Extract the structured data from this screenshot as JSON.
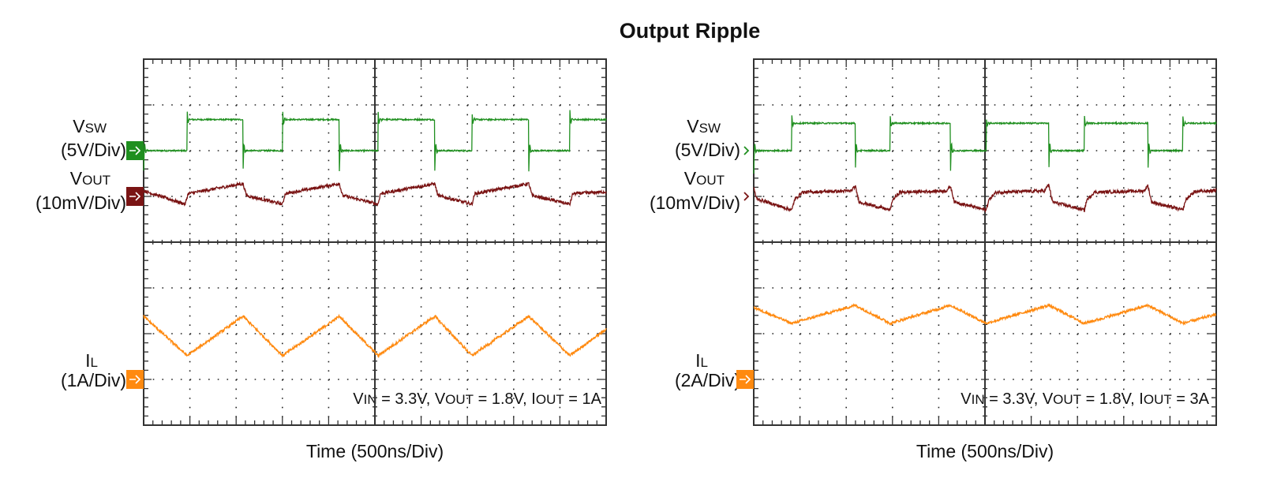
{
  "title": "Output Ripple",
  "colors": {
    "vsw": "#1f8f1f",
    "vout": "#7a1414",
    "il": "#ff8a10",
    "grid": "#222222"
  },
  "chart_data": [
    {
      "type": "line",
      "xlabel": "Time (500ns/Div)",
      "x_unit": "ns",
      "xlim": [
        0,
        5000
      ],
      "divisions": {
        "x": 10,
        "y": 8
      },
      "annotation": {
        "vin_v": "V",
        "vin_sub": "IN",
        "vin_val": " = 3.3V, ",
        "vout_v": "V",
        "vout_sub": "OUT",
        "vout_val": " = 1.8V, ",
        "iout_i": "I",
        "iout_sub": "OUT",
        "iout_val": " = 1A"
      },
      "channels": {
        "vsw": {
          "name": "V",
          "name_sub": "SW",
          "scale": "(5V/Div)",
          "volts_per_div": 5,
          "marker_div": 2,
          "marker_style": "box",
          "low": 0,
          "high": 3.4,
          "overshoot": 4.5,
          "undershoot": -2.2,
          "rise_ns": [
            470,
            1502,
            2534,
            3549,
            4608
          ],
          "fall_ns": [
            1075,
            2116,
            3148,
            4164
          ]
        },
        "vout": {
          "name": "V",
          "name_sub": "OUT",
          "scale": "(10mV/Div)",
          "mv_per_div": 10,
          "marker_div": 1,
          "marker_style": "box",
          "points_mv": [
            [
              0,
              1.2
            ],
            [
              450,
              -1.7
            ],
            [
              480,
              0.6
            ],
            [
              1075,
              2.8
            ],
            [
              1110,
              0.2
            ],
            [
              1502,
              -1.7
            ],
            [
              1530,
              0.6
            ],
            [
              2116,
              2.8
            ],
            [
              2150,
              0.2
            ],
            [
              2534,
              -1.7
            ],
            [
              2560,
              0.6
            ],
            [
              3148,
              2.8
            ],
            [
              3180,
              0.2
            ],
            [
              3549,
              -1.7
            ],
            [
              3580,
              0.6
            ],
            [
              4164,
              2.8
            ],
            [
              4200,
              0.2
            ],
            [
              4608,
              -1.7
            ],
            [
              4640,
              0.6
            ],
            [
              5000,
              1.0
            ]
          ]
        },
        "il": {
          "name": "I",
          "name_sub": "L",
          "scale": "(1A/Div)",
          "amps_per_div": 1,
          "marker_div": -3,
          "marker_style": "box",
          "points_a": [
            [
              0,
              1.38
            ],
            [
              470,
              0.52
            ],
            [
              1075,
              1.38
            ],
            [
              1502,
              0.52
            ],
            [
              2116,
              1.38
            ],
            [
              2534,
              0.52
            ],
            [
              3148,
              1.38
            ],
            [
              3549,
              0.52
            ],
            [
              4164,
              1.38
            ],
            [
              4608,
              0.52
            ],
            [
              5000,
              1.1
            ]
          ]
        }
      }
    },
    {
      "type": "line",
      "xlabel": "Time (500ns/Div)",
      "x_unit": "ns",
      "xlim": [
        0,
        5000
      ],
      "divisions": {
        "x": 10,
        "y": 8
      },
      "annotation": {
        "vin_v": "V",
        "vin_sub": "IN",
        "vin_val": " = 3.3V, ",
        "vout_v": "V",
        "vout_sub": "OUT",
        "vout_val": " = 1.8V, ",
        "iout_i": "I",
        "iout_sub": "OUT",
        "iout_val": " = 3A"
      },
      "channels": {
        "vsw": {
          "name": "V",
          "name_sub": "SW",
          "scale": "(5V/Div)",
          "volts_per_div": 5,
          "marker_div": 2,
          "marker_style": "chevron",
          "low": 0,
          "high": 3.0,
          "overshoot": 3.8,
          "undershoot": -2.5,
          "rise_ns": [
            412,
            1475,
            2513,
            3576,
            4640
          ],
          "fall_ns": [
            1098,
            2127,
            3190,
            4262
          ]
        },
        "vout": {
          "name": "V",
          "name_sub": "OUT",
          "scale": "(10mV/Div)",
          "mv_per_div": 10,
          "marker_div": 1,
          "marker_style": "chevron",
          "points_mv": [
            [
              0,
              2.0
            ],
            [
              30,
              -0.5
            ],
            [
              412,
              -3.0
            ],
            [
              440,
              -0.8
            ],
            [
              520,
              0.9
            ],
            [
              1050,
              1.2
            ],
            [
              1098,
              2.2
            ],
            [
              1140,
              -1.2
            ],
            [
              1475,
              -3.0
            ],
            [
              1500,
              -0.8
            ],
            [
              1580,
              0.9
            ],
            [
              2080,
              1.2
            ],
            [
              2127,
              2.2
            ],
            [
              2170,
              -1.2
            ],
            [
              2513,
              -3.0
            ],
            [
              2540,
              -0.8
            ],
            [
              2620,
              0.9
            ],
            [
              3140,
              1.2
            ],
            [
              3190,
              2.6
            ],
            [
              3230,
              -1.2
            ],
            [
              3576,
              -3.0
            ],
            [
              3600,
              -0.8
            ],
            [
              3680,
              0.9
            ],
            [
              4220,
              1.2
            ],
            [
              4262,
              2.4
            ],
            [
              4300,
              -1.2
            ],
            [
              4640,
              -3.0
            ],
            [
              4670,
              -0.8
            ],
            [
              4760,
              1.0
            ],
            [
              5000,
              1.3
            ]
          ]
        },
        "il": {
          "name": "I",
          "name_sub": "L",
          "scale": "(2A/Div)",
          "amps_per_div": 2,
          "marker_div": -3,
          "marker_style": "box",
          "points_a": [
            [
              0,
              3.15
            ],
            [
              412,
              2.45
            ],
            [
              1098,
              3.24
            ],
            [
              1475,
              2.45
            ],
            [
              2127,
              3.24
            ],
            [
              2513,
              2.45
            ],
            [
              3190,
              3.24
            ],
            [
              3576,
              2.45
            ],
            [
              4262,
              3.24
            ],
            [
              4640,
              2.45
            ],
            [
              5000,
              2.85
            ]
          ]
        }
      }
    }
  ]
}
